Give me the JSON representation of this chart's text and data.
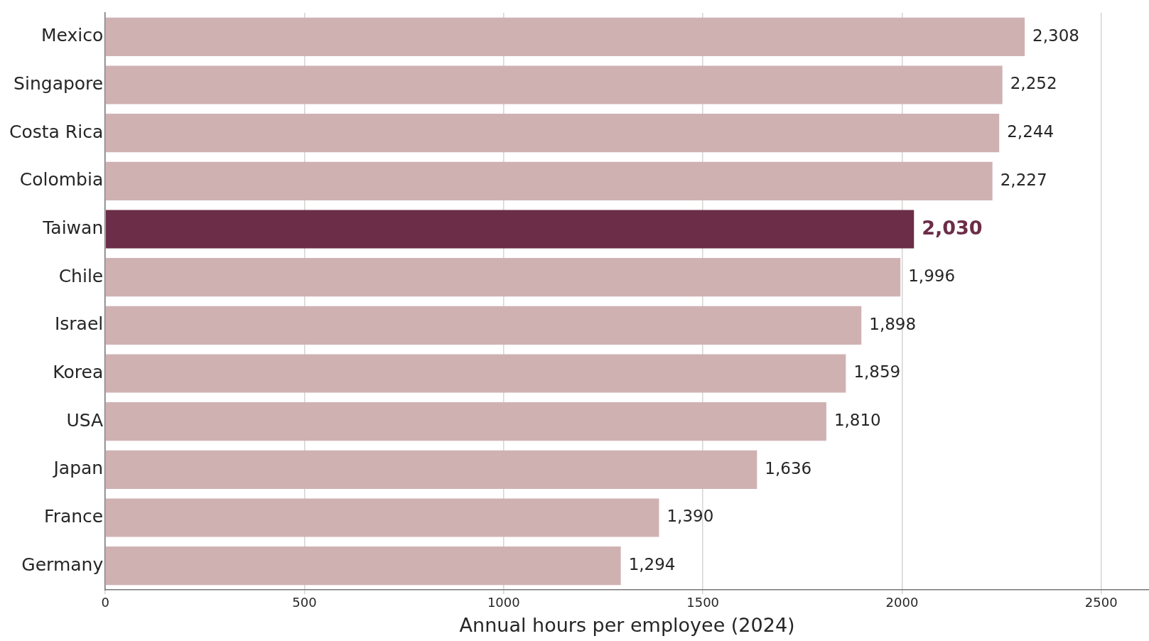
{
  "chart_data": {
    "type": "bar",
    "orientation": "horizontal",
    "xlabel": "Annual hours per employee (2024)",
    "categories": [
      "Mexico",
      "Singapore",
      "Costa Rica",
      "Colombia",
      "Taiwan",
      "Chile",
      "Israel",
      "Korea",
      "USA",
      "Japan",
      "France",
      "Germany"
    ],
    "values": [
      2308,
      2252,
      2244,
      2227,
      2030,
      1996,
      1898,
      1859,
      1810,
      1636,
      1390,
      1294
    ],
    "colors": [
      "#d0b1b2",
      "#d0b1b2",
      "#d0b1b2",
      "#d0b1b2",
      "#6b2d47",
      "#d0b1b2",
      "#d0b1b2",
      "#d0b1b2",
      "#d0b1b2",
      "#d0b1b2",
      "#d0b1b2",
      "#d0b1b2"
    ],
    "xlim": [
      0,
      2620
    ],
    "xticks": [
      0,
      500,
      1000,
      1500,
      2000,
      2500
    ],
    "value_labels": [
      "2,308",
      "2,252",
      "2,244",
      "2,227",
      "2,030",
      "1,996",
      "1,898",
      "1,859",
      "1,810",
      "1,636",
      "1,390",
      "1,294"
    ],
    "grid": "x"
  }
}
